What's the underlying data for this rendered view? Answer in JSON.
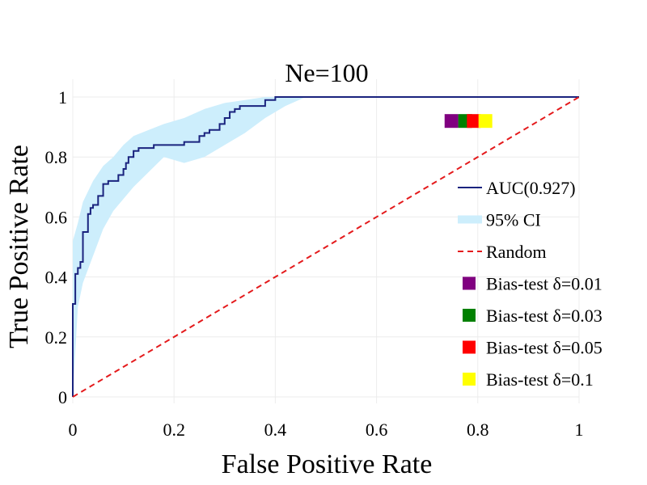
{
  "chart_data": {
    "type": "line",
    "title": "Ne=100",
    "xlabel": "False Positive Rate",
    "ylabel": "True Positive Rate",
    "xlim": [
      0,
      1
    ],
    "ylim": [
      0,
      1
    ],
    "grid": true,
    "legend_position": "right",
    "x_ticks": [
      {
        "value": 0,
        "label": "0"
      },
      {
        "value": 0.2,
        "label": "0.2"
      },
      {
        "value": 0.4,
        "label": "0.4"
      },
      {
        "value": 0.6,
        "label": "0.6"
      },
      {
        "value": 0.8,
        "label": "0.8"
      },
      {
        "value": 1,
        "label": "1"
      }
    ],
    "y_ticks": [
      {
        "value": 0,
        "label": "0"
      },
      {
        "value": 0.2,
        "label": "0.2"
      },
      {
        "value": 0.4,
        "label": "0.4"
      },
      {
        "value": 0.6,
        "label": "0.6"
      },
      {
        "value": 0.8,
        "label": "0.8"
      },
      {
        "value": 1,
        "label": "1"
      }
    ],
    "series": [
      {
        "name": "AUC(0.927)",
        "kind": "roc-curve",
        "color": "#1a237e",
        "x": [
          0,
          0,
          0.005,
          0.005,
          0.01,
          0.01,
          0.015,
          0.015,
          0.02,
          0.02,
          0.03,
          0.03,
          0.035,
          0.035,
          0.04,
          0.04,
          0.05,
          0.05,
          0.06,
          0.06,
          0.07,
          0.07,
          0.09,
          0.09,
          0.1,
          0.1,
          0.105,
          0.105,
          0.11,
          0.11,
          0.12,
          0.12,
          0.13,
          0.13,
          0.16,
          0.16,
          0.22,
          0.22,
          0.25,
          0.25,
          0.26,
          0.26,
          0.27,
          0.27,
          0.29,
          0.29,
          0.3,
          0.3,
          0.31,
          0.31,
          0.32,
          0.32,
          0.33,
          0.33,
          0.38,
          0.38,
          0.4,
          0.4,
          1.0
        ],
        "y": [
          0,
          0.31,
          0.31,
          0.41,
          0.41,
          0.43,
          0.43,
          0.45,
          0.45,
          0.55,
          0.55,
          0.61,
          0.61,
          0.63,
          0.63,
          0.64,
          0.64,
          0.67,
          0.67,
          0.71,
          0.71,
          0.72,
          0.72,
          0.74,
          0.74,
          0.76,
          0.76,
          0.78,
          0.78,
          0.8,
          0.8,
          0.82,
          0.82,
          0.83,
          0.83,
          0.84,
          0.84,
          0.85,
          0.85,
          0.87,
          0.87,
          0.88,
          0.88,
          0.89,
          0.89,
          0.91,
          0.91,
          0.93,
          0.93,
          0.95,
          0.95,
          0.96,
          0.96,
          0.97,
          0.97,
          0.99,
          0.99,
          1.0,
          1.0
        ]
      },
      {
        "name": "95% CI",
        "kind": "band",
        "color": "#cdeefc",
        "x": [
          0,
          0.01,
          0.02,
          0.04,
          0.06,
          0.08,
          0.1,
          0.12,
          0.15,
          0.18,
          0.22,
          0.26,
          0.3,
          0.34,
          0.38,
          0.42,
          0.46,
          1.0
        ],
        "upper": [
          0.52,
          0.58,
          0.65,
          0.72,
          0.77,
          0.8,
          0.84,
          0.87,
          0.89,
          0.91,
          0.93,
          0.96,
          0.98,
          0.99,
          1.0,
          1.0,
          1.0,
          1.0
        ],
        "lower": [
          0.0,
          0.3,
          0.38,
          0.47,
          0.56,
          0.62,
          0.66,
          0.7,
          0.75,
          0.8,
          0.78,
          0.8,
          0.84,
          0.88,
          0.93,
          0.97,
          1.0,
          1.0
        ]
      },
      {
        "name": "Random",
        "kind": "dashed-line",
        "color": "#e41a1c",
        "x": [
          0,
          1
        ],
        "y": [
          0,
          1
        ]
      },
      {
        "name": "Bias-test δ=0.01",
        "kind": "marker",
        "color": "#800080",
        "x": 0.748,
        "y": 0.92
      },
      {
        "name": "Bias-test δ=0.03",
        "kind": "marker",
        "color": "#008000",
        "x": 0.775,
        "y": 0.92
      },
      {
        "name": "Bias-test δ=0.05",
        "kind": "marker",
        "color": "#ff0000",
        "x": 0.792,
        "y": 0.92
      },
      {
        "name": "Bias-test δ=0.1",
        "kind": "marker",
        "color": "#ffff00",
        "x": 0.815,
        "y": 0.92
      }
    ]
  }
}
